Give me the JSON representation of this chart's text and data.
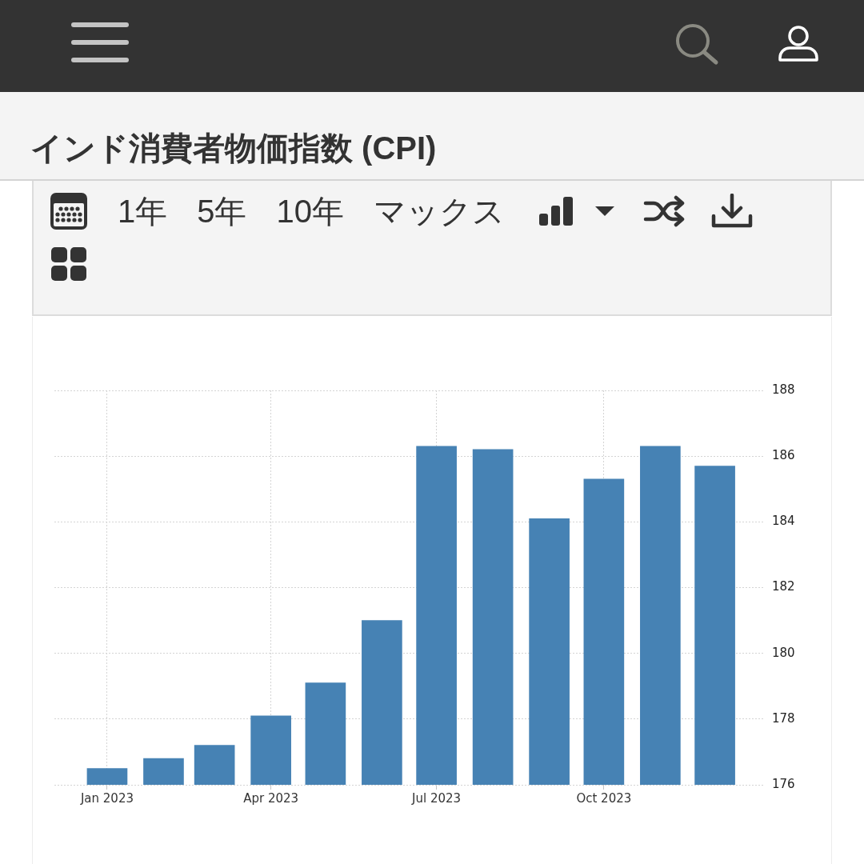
{
  "chart_data": {
    "type": "bar",
    "title": "インド消費者物価指数 (CPI)",
    "x": [
      "2023-01",
      "2023-02",
      "2023-03",
      "2023-04",
      "2023-05",
      "2023-06",
      "2023-07",
      "2023-08",
      "2023-09",
      "2023-10",
      "2023-11",
      "2023-12"
    ],
    "values": [
      176.5,
      176.8,
      177.2,
      178.1,
      179.1,
      181.0,
      186.3,
      186.2,
      184.1,
      185.3,
      186.3,
      185.7
    ],
    "color": "#4682b4",
    "xlim": [
      "2022-12-03",
      "2023-12-28"
    ],
    "xticks": [
      {
        "value": "2023-01",
        "label": "Jan 2023"
      },
      {
        "value": "2023-04",
        "label": "Apr 2023"
      },
      {
        "value": "2023-07",
        "label": "Jul 2023"
      },
      {
        "value": "2023-10",
        "label": "Oct 2023"
      }
    ],
    "ylim": [
      176,
      188
    ],
    "yticks": [
      176,
      178,
      180,
      182,
      184,
      186,
      188
    ],
    "grid": true,
    "annotations": [
      "1年",
      "5年",
      "10年",
      "マックス"
    ]
  }
}
